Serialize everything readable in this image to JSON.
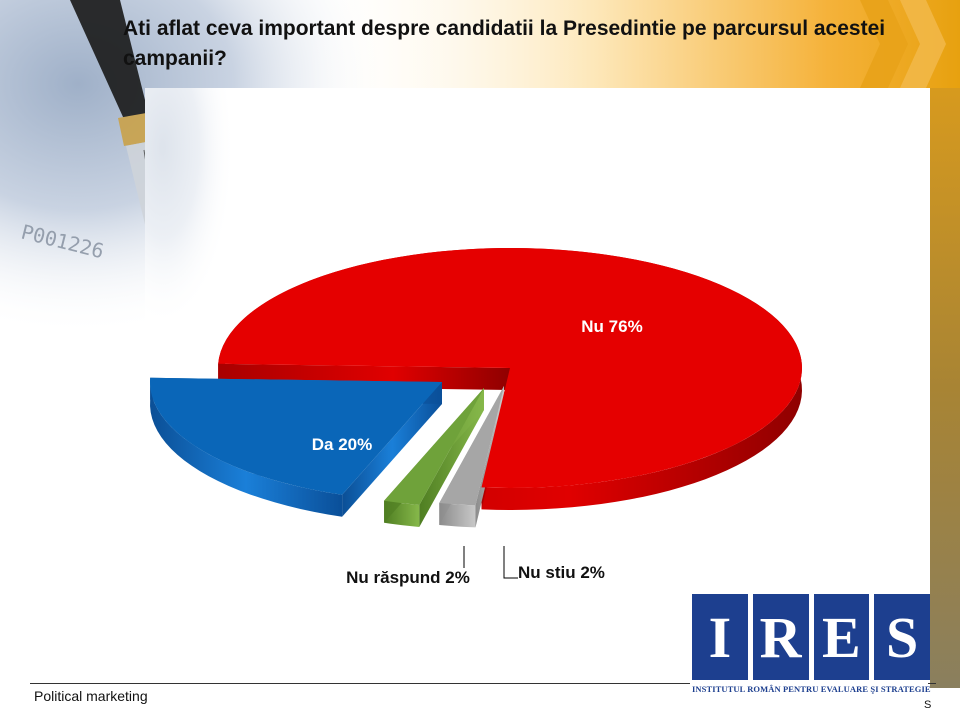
{
  "title": "Ati aflat ceva important despre candidatii la Presedintie pe parcursul acestei campanii?",
  "footer": "Political marketing",
  "page_mark": "S",
  "logo": {
    "letters": [
      "I",
      "R",
      "E",
      "S"
    ],
    "subtitle": "INSTITUTUL ROMÂN PENTRU EVALUARE ŞI STRATEGIE",
    "color": "#1d3f8f"
  },
  "chart_data": {
    "type": "pie",
    "title": "",
    "slices": [
      {
        "label": "Nu",
        "value": 76,
        "display": "Nu 76%",
        "color": "#e50000"
      },
      {
        "label": "Nu stiu",
        "value": 2,
        "display": "Nu stiu 2%",
        "color": "#a6a6a6"
      },
      {
        "label": "Nu răspund",
        "value": 2,
        "display": "Nu răspund 2%",
        "color": "#6fa23a"
      },
      {
        "label": "Da",
        "value": 20,
        "display": "Da 20%",
        "color": "#0a66b8"
      }
    ],
    "exploded": true,
    "three_d": true
  }
}
